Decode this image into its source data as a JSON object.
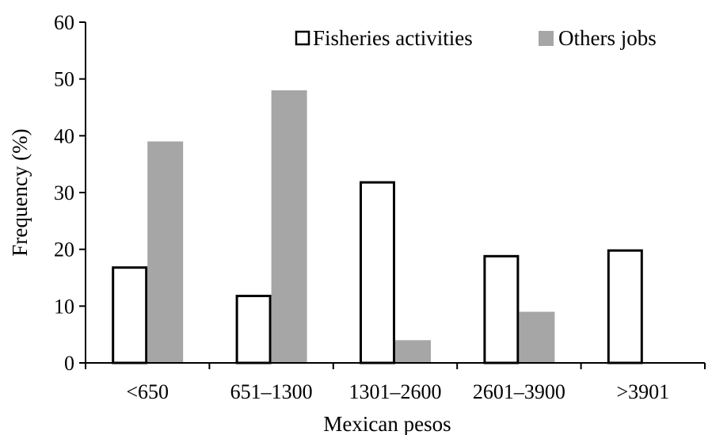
{
  "chart_data": {
    "type": "bar",
    "title": "",
    "xlabel": "Mexican pesos",
    "ylabel": "Frequency (%)",
    "categories": [
      "<650",
      "651–1300",
      "1301–2600",
      "2601–3900",
      ">3901"
    ],
    "series": [
      {
        "name": "Fisheries activities",
        "values": [
          17,
          12,
          32,
          19,
          20
        ],
        "fill": "#ffffff",
        "stroke": "#000000"
      },
      {
        "name": "Others jobs",
        "values": [
          39,
          48,
          4,
          9,
          0
        ],
        "fill": "#a6a6a6",
        "stroke": "none"
      }
    ],
    "ylim": [
      0,
      60
    ],
    "yticks": [
      "0",
      "10",
      "20",
      "30",
      "40",
      "50",
      "60"
    ],
    "grid": false,
    "legend_position": "top-right"
  }
}
